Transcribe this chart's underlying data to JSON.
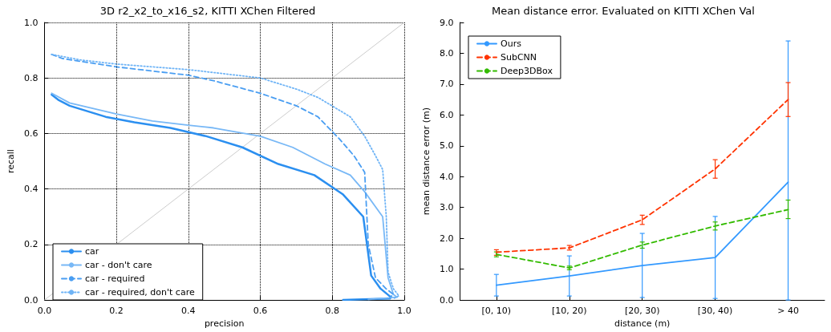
{
  "chart_data": [
    {
      "type": "line",
      "title": "3D r2_x2_to_x16_s2, KITTI XChen Filtered",
      "xlabel": "precision",
      "ylabel": "recall",
      "xlim": [
        0,
        1
      ],
      "ylim": [
        0,
        1
      ],
      "xticks": [
        {
          "value": 0,
          "label": "0.0"
        },
        {
          "value": 0.2,
          "label": "0.2"
        },
        {
          "value": 0.4,
          "label": "0.4"
        },
        {
          "value": 0.6,
          "label": "0.6"
        },
        {
          "value": 0.8,
          "label": "0.8"
        },
        {
          "value": 1,
          "label": "1.0"
        }
      ],
      "yticks": [
        {
          "value": 0,
          "label": "0.0"
        },
        {
          "value": 0.2,
          "label": "0.2"
        },
        {
          "value": 0.4,
          "label": "0.4"
        },
        {
          "value": 0.6,
          "label": "0.6"
        },
        {
          "value": 0.8,
          "label": "0.8"
        },
        {
          "value": 1,
          "label": "1.0"
        }
      ],
      "grid": true,
      "legend": "bottom left",
      "marker": "none",
      "series": [
        {
          "color": "#cccccc",
          "line_style": "solid",
          "x": [
            0,
            1
          ],
          "values": [
            0,
            1
          ]
        },
        {
          "name": "car",
          "color": "#2b8ff0",
          "line_style": "solid",
          "x": [
            0.02,
            0.04,
            0.07,
            0.17,
            0.25,
            0.35,
            0.45,
            0.55,
            0.65,
            0.75,
            0.83,
            0.886,
            0.908,
            0.934,
            0.963,
            0.96,
            0.83
          ],
          "values": [
            0.74,
            0.72,
            0.7,
            0.66,
            0.64,
            0.62,
            0.59,
            0.55,
            0.49,
            0.45,
            0.38,
            0.3,
            0.088,
            0.041,
            0.01,
            0.005,
            0.0
          ]
        },
        {
          "name": "car - don't care",
          "color": "#78b8f6",
          "line_style": "solid",
          "x": [
            0.02,
            0.07,
            0.2,
            0.3,
            0.4,
            0.47,
            0.6,
            0.69,
            0.78,
            0.85,
            0.89,
            0.94,
            0.955,
            0.97,
            0.98,
            0.9
          ],
          "values": [
            0.745,
            0.71,
            0.67,
            0.645,
            0.63,
            0.62,
            0.59,
            0.55,
            0.49,
            0.45,
            0.39,
            0.3,
            0.08,
            0.02,
            0.01,
            0.002
          ]
        },
        {
          "name": "car - required",
          "color": "#4a9ef2",
          "line_style": "dashed",
          "x": [
            0.02,
            0.05,
            0.2,
            0.4,
            0.47,
            0.6,
            0.7,
            0.76,
            0.82,
            0.86,
            0.89,
            0.9,
            0.92,
            0.95,
            0.97,
            0.96
          ],
          "values": [
            0.885,
            0.87,
            0.84,
            0.81,
            0.79,
            0.745,
            0.7,
            0.66,
            0.58,
            0.52,
            0.46,
            0.2,
            0.08,
            0.04,
            0.02,
            0.01
          ]
        },
        {
          "name": "car - required, don't care",
          "color": "#6fb4f6",
          "line_style": "dotted",
          "x": [
            0.02,
            0.1,
            0.2,
            0.4,
            0.6,
            0.7,
            0.76,
            0.85,
            0.89,
            0.92,
            0.94,
            0.95,
            0.955,
            0.97,
            0.985,
            0.97
          ],
          "values": [
            0.885,
            0.865,
            0.85,
            0.83,
            0.8,
            0.76,
            0.73,
            0.66,
            0.59,
            0.52,
            0.47,
            0.3,
            0.1,
            0.04,
            0.015,
            0.005
          ]
        }
      ]
    },
    {
      "type": "line",
      "title": "Mean distance error. Evaluated on KITTI XChen Val",
      "xlabel": "distance (m)",
      "ylabel": "mean distance error (m)",
      "categories": [
        "[0, 10)",
        "[10, 20)",
        "[20, 30)",
        "[30, 40)",
        "> 40"
      ],
      "ylim": [
        0,
        9
      ],
      "yticks": [
        {
          "value": 0,
          "label": "0.0"
        },
        {
          "value": 1,
          "label": "1.0"
        },
        {
          "value": 2,
          "label": "2.0"
        },
        {
          "value": 3,
          "label": "3.0"
        },
        {
          "value": 4,
          "label": "4.0"
        },
        {
          "value": 5,
          "label": "5.0"
        },
        {
          "value": 6,
          "label": "6.0"
        },
        {
          "value": 7,
          "label": "7.0"
        },
        {
          "value": 8,
          "label": "8.0"
        },
        {
          "value": 9,
          "label": "9.0"
        }
      ],
      "grid": false,
      "legend": "top left",
      "marker": "none",
      "series": [
        {
          "name": "Ours",
          "color": "#3399ff",
          "line_style": "solid",
          "values": [
            0.48,
            0.78,
            1.12,
            1.38,
            3.82
          ],
          "errors": [
            [
              0.13,
              0.83
            ],
            [
              0.13,
              1.43
            ],
            [
              0.08,
              2.16
            ],
            [
              0.05,
              2.71
            ],
            [
              0.0,
              8.4
            ]
          ]
        },
        {
          "name": "SubCNN",
          "color": "#ff3300",
          "line_style": "dashed",
          "values": [
            1.55,
            1.69,
            2.6,
            4.25,
            6.5
          ],
          "errors": [
            [
              1.45,
              1.63
            ],
            [
              1.62,
              1.77
            ],
            [
              2.45,
              2.75
            ],
            [
              3.95,
              4.55
            ],
            [
              5.95,
              7.05
            ]
          ]
        },
        {
          "name": "Deep3DBox",
          "color": "#33bb00",
          "line_style": "dashed",
          "values": [
            1.48,
            1.04,
            1.78,
            2.4,
            2.93
          ],
          "errors": [
            [
              1.4,
              1.56
            ],
            [
              0.98,
              1.1
            ],
            [
              1.68,
              1.88
            ],
            [
              2.27,
              2.53
            ],
            [
              2.64,
              3.24
            ]
          ]
        }
      ]
    }
  ]
}
